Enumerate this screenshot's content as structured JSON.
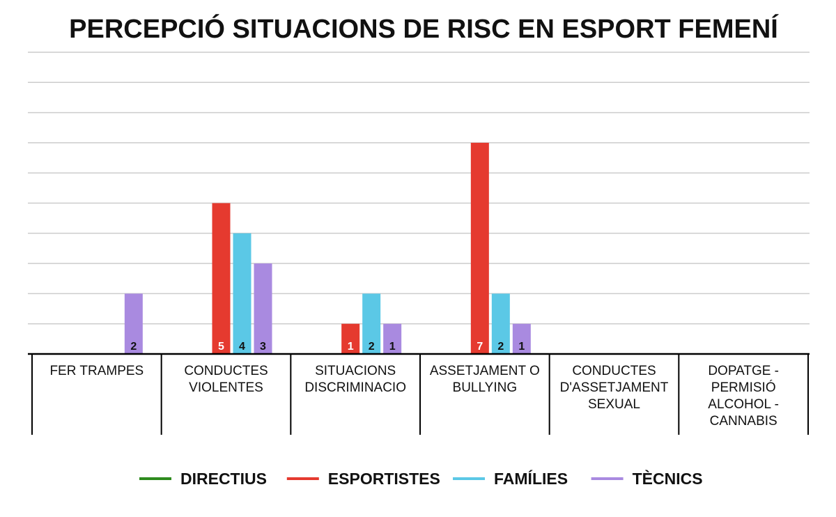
{
  "chart_data": {
    "type": "bar",
    "title": "PERCEPCIÓ SITUACIONS DE RISC EN ESPORT FEMENÍ",
    "categories": [
      [
        "FER TRAMPES"
      ],
      [
        "CONDUCTES",
        "VIOLENTES"
      ],
      [
        "SITUACIONS",
        "DISCRIMINACIO"
      ],
      [
        "ASSETJAMENT O",
        "BULLYING"
      ],
      [
        "CONDUCTES",
        "D'ASSETJAMENT",
        "SEXUAL"
      ],
      [
        "DOPATGE -",
        "PERMISIÓ",
        "ALCOHOL -",
        "CANNABIS"
      ]
    ],
    "series": [
      {
        "name": "DIRECTIUS",
        "color": "#2e8b1e",
        "values": [
          0,
          0,
          0,
          0,
          0,
          0
        ]
      },
      {
        "name": "ESPORTISTES",
        "color": "#e53a2f",
        "values": [
          0,
          5,
          1,
          7,
          0,
          0
        ]
      },
      {
        "name": "FAMÍLIES",
        "color": "#5bc8e6",
        "values": [
          0,
          4,
          2,
          2,
          0,
          0
        ]
      },
      {
        "name": "TÈCNICS",
        "color": "#a98ae0",
        "values": [
          2,
          3,
          1,
          1,
          0,
          0
        ]
      }
    ],
    "ylim": [
      0,
      10
    ],
    "grid": true,
    "legend": "bottom",
    "xlabel": "",
    "ylabel": ""
  }
}
